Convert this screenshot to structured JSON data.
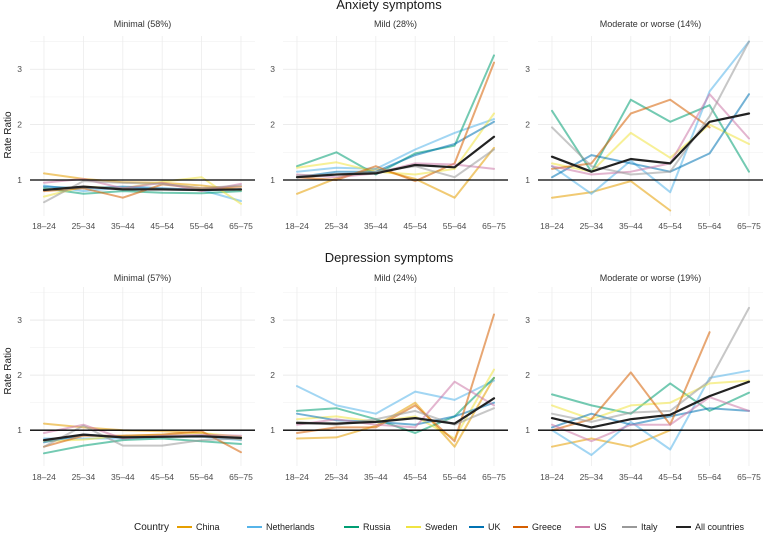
{
  "figure": {
    "ylabel": "Rate Ratio",
    "legend_title": "Country"
  },
  "chart_data": {
    "type": "line",
    "categories": [
      "18–24",
      "25–34",
      "35–44",
      "45–54",
      "55–64",
      "65–75"
    ],
    "ylim": [
      0.35,
      3.6
    ],
    "yticks": [
      1,
      2,
      3
    ],
    "reference_line": 1,
    "series_info": [
      {
        "name": "China",
        "color": "#E69F00"
      },
      {
        "name": "Netherlands",
        "color": "#56B4E9"
      },
      {
        "name": "Russia",
        "color": "#009E73"
      },
      {
        "name": "Sweden",
        "color": "#F0E442"
      },
      {
        "name": "UK",
        "color": "#0072B2"
      },
      {
        "name": "Greece",
        "color": "#D55E00"
      },
      {
        "name": "US",
        "color": "#CC79A7"
      },
      {
        "name": "Italy",
        "color": "#999999"
      },
      {
        "name": "All countries",
        "color": "#222222"
      }
    ],
    "sections": [
      {
        "title": "Anxiety symptoms",
        "panels": [
          {
            "title": "Minimal (58%)",
            "series": [
              {
                "name": "China",
                "values": [
                  1.12,
                  1.02,
                  0.96,
                  0.95,
                  0.9,
                  0.82
                ]
              },
              {
                "name": "Netherlands",
                "values": [
                  0.9,
                  0.8,
                  0.86,
                  0.83,
                  0.82,
                  0.62
                ]
              },
              {
                "name": "Russia",
                "values": [
                  0.85,
                  0.75,
                  0.8,
                  0.77,
                  0.76,
                  0.8
                ]
              },
              {
                "name": "Sweden",
                "values": [
                  0.7,
                  0.88,
                  0.85,
                  0.97,
                  1.05,
                  0.57
                ]
              },
              {
                "name": "UK",
                "values": [
                  0.88,
                  0.85,
                  0.88,
                  0.85,
                  0.82,
                  0.83
                ]
              },
              {
                "name": "Greece",
                "values": [
                  0.8,
                  0.85,
                  0.68,
                  0.92,
                  0.85,
                  0.88
                ]
              },
              {
                "name": "US",
                "values": [
                  0.95,
                  1.02,
                  0.85,
                  0.95,
                  0.8,
                  0.93
                ]
              },
              {
                "name": "Italy",
                "values": [
                  0.6,
                  0.98,
                  0.95,
                  0.93,
                  0.85,
                  0.9
                ]
              },
              {
                "name": "All countries",
                "values": [
                  0.82,
                  0.88,
                  0.83,
                  0.83,
                  0.82,
                  0.83
                ]
              }
            ]
          },
          {
            "title": "Mild (28%)",
            "series": [
              {
                "name": "China",
                "values": [
                  0.75,
                  1.03,
                  1.2,
                  1.02,
                  0.68,
                  1.58
                ]
              },
              {
                "name": "Netherlands",
                "values": [
                  1.15,
                  1.22,
                  1.2,
                  1.55,
                  1.85,
                  2.1
                ]
              },
              {
                "name": "Russia",
                "values": [
                  1.25,
                  1.5,
                  1.1,
                  1.48,
                  1.62,
                  3.25
                ]
              },
              {
                "name": "Sweden",
                "values": [
                  1.22,
                  1.32,
                  1.15,
                  1.1,
                  1.2,
                  2.2
                ]
              },
              {
                "name": "UK",
                "values": [
                  1.05,
                  1.15,
                  1.15,
                  1.45,
                  1.65,
                  2.05
                ]
              },
              {
                "name": "Greece",
                "values": [
                  1.05,
                  1.0,
                  1.25,
                  0.98,
                  1.3,
                  3.12
                ]
              },
              {
                "name": "US",
                "values": [
                  1.1,
                  1.05,
                  1.12,
                  1.3,
                  1.28,
                  1.2
                ]
              },
              {
                "name": "Italy",
                "values": [
                  1.08,
                  1.1,
                  1.15,
                  1.25,
                  1.05,
                  1.55
                ]
              },
              {
                "name": "All countries",
                "values": [
                  1.05,
                  1.1,
                  1.12,
                  1.27,
                  1.23,
                  1.78
                ]
              }
            ]
          },
          {
            "title": "Moderate or worse (14%)",
            "series": [
              {
                "name": "China",
                "values": [
                  0.68,
                  0.78,
                  0.98,
                  0.45,
                  null,
                  null
                ]
              },
              {
                "name": "Netherlands",
                "values": [
                  1.25,
                  0.75,
                  1.35,
                  0.78,
                  2.6,
                  3.5
                ]
              },
              {
                "name": "Russia",
                "values": [
                  2.25,
                  1.15,
                  2.45,
                  2.05,
                  2.35,
                  1.15
                ]
              },
              {
                "name": "Sweden",
                "values": [
                  1.3,
                  1.15,
                  1.85,
                  1.4,
                  2.0,
                  1.65
                ]
              },
              {
                "name": "UK",
                "values": [
                  1.05,
                  1.45,
                  1.3,
                  1.15,
                  1.48,
                  2.55
                ]
              },
              {
                "name": "Greece",
                "values": [
                  1.2,
                  1.3,
                  2.2,
                  2.45,
                  1.95,
                  null
                ]
              },
              {
                "name": "US",
                "values": [
                  1.25,
                  1.1,
                  1.15,
                  1.3,
                  2.55,
                  1.75
                ]
              },
              {
                "name": "Italy",
                "values": [
                  1.95,
                  1.25,
                  1.1,
                  1.15,
                  2.15,
                  3.5
                ]
              },
              {
                "name": "All countries",
                "values": [
                  1.42,
                  1.15,
                  1.38,
                  1.3,
                  2.05,
                  2.2
                ]
              }
            ]
          }
        ]
      },
      {
        "title": "Depression symptoms",
        "panels": [
          {
            "title": "Minimal (57%)",
            "series": [
              {
                "name": "China",
                "values": [
                  1.12,
                  1.05,
                  1.0,
                  0.98,
                  0.95,
                  0.83
                ]
              },
              {
                "name": "Netherlands",
                "values": [
                  0.85,
                  0.85,
                  0.85,
                  0.88,
                  0.88,
                  0.82
                ]
              },
              {
                "name": "Russia",
                "values": [
                  0.58,
                  0.72,
                  0.82,
                  0.85,
                  0.8,
                  0.75
                ]
              },
              {
                "name": "Sweden",
                "values": [
                  0.8,
                  0.83,
                  0.9,
                  0.92,
                  0.95,
                  0.88
                ]
              },
              {
                "name": "UK",
                "values": [
                  0.78,
                  0.92,
                  0.88,
                  0.88,
                  0.9,
                  0.86
                ]
              },
              {
                "name": "Greece",
                "values": [
                  0.7,
                  0.9,
                  0.9,
                  0.92,
                  0.98,
                  0.6
                ]
              },
              {
                "name": "US",
                "values": [
                  0.95,
                  1.1,
                  0.85,
                  0.9,
                  0.92,
                  0.9
                ]
              },
              {
                "name": "Italy",
                "values": [
                  0.7,
                  1.08,
                  0.72,
                  0.72,
                  0.82,
                  0.85
                ]
              },
              {
                "name": "All countries",
                "values": [
                  0.82,
                  0.92,
                  0.87,
                  0.88,
                  0.89,
                  0.86
                ]
              }
            ]
          },
          {
            "title": "Mild (24%)",
            "series": [
              {
                "name": "China",
                "values": [
                  0.85,
                  0.87,
                  1.08,
                  1.5,
                  0.7,
                  1.95
                ]
              },
              {
                "name": "Netherlands",
                "values": [
                  1.8,
                  1.45,
                  1.3,
                  1.7,
                  1.55,
                  1.9
                ]
              },
              {
                "name": "Russia",
                "values": [
                  1.35,
                  1.4,
                  1.2,
                  0.95,
                  1.25,
                  1.95
                ]
              },
              {
                "name": "Sweden",
                "values": [
                  1.2,
                  1.25,
                  1.15,
                  1.25,
                  0.85,
                  2.1
                ]
              },
              {
                "name": "UK",
                "values": [
                  1.3,
                  1.18,
                  1.15,
                  1.1,
                  1.25,
                  1.5
                ]
              },
              {
                "name": "Greece",
                "values": [
                  0.95,
                  1.05,
                  1.05,
                  1.45,
                  0.8,
                  3.1
                ]
              },
              {
                "name": "US",
                "values": [
                  1.1,
                  1.2,
                  1.1,
                  1.05,
                  1.88,
                  1.45
                ]
              },
              {
                "name": "Italy",
                "values": [
                  1.15,
                  1.1,
                  1.2,
                  1.35,
                  1.1,
                  1.4
                ]
              },
              {
                "name": "All countries",
                "values": [
                  1.13,
                  1.12,
                  1.15,
                  1.22,
                  1.12,
                  1.58
                ]
              }
            ]
          },
          {
            "title": "Moderate or worse (19%)",
            "series": [
              {
                "name": "China",
                "values": [
                  0.7,
                  0.85,
                  0.7,
                  1.0,
                  null,
                  null
                ]
              },
              {
                "name": "Netherlands",
                "values": [
                  1.0,
                  0.55,
                  1.15,
                  0.65,
                  1.95,
                  2.08
                ]
              },
              {
                "name": "Russia",
                "values": [
                  1.65,
                  1.45,
                  1.3,
                  1.85,
                  1.35,
                  1.68
                ]
              },
              {
                "name": "Sweden",
                "values": [
                  1.45,
                  1.2,
                  1.45,
                  1.5,
                  1.85,
                  1.9
                ]
              },
              {
                "name": "UK",
                "values": [
                  1.05,
                  1.3,
                  1.1,
                  1.25,
                  1.4,
                  1.35
                ]
              },
              {
                "name": "Greece",
                "values": [
                  1.0,
                  1.2,
                  2.05,
                  1.1,
                  2.78,
                  null
                ]
              },
              {
                "name": "US",
                "values": [
                  1.1,
                  0.8,
                  1.1,
                  1.1,
                  1.6,
                  1.35
                ]
              },
              {
                "name": "Italy",
                "values": [
                  1.3,
                  1.15,
                  1.32,
                  1.35,
                  1.9,
                  3.22
                ]
              },
              {
                "name": "All countries",
                "values": [
                  1.22,
                  1.05,
                  1.2,
                  1.28,
                  1.62,
                  1.88
                ]
              }
            ]
          }
        ]
      }
    ]
  }
}
